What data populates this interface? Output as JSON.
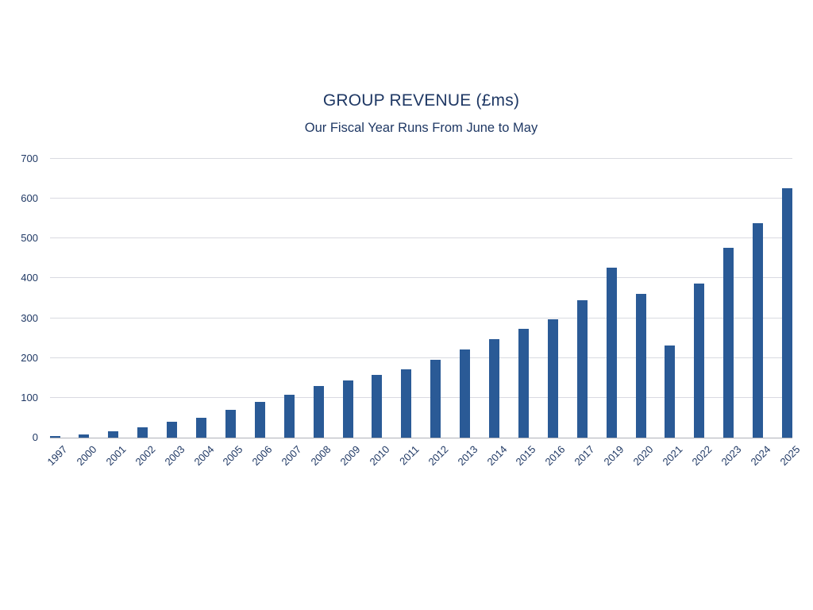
{
  "chart_data": {
    "type": "bar",
    "title": "GROUP REVENUE (£ms)",
    "subtitle": "Our Fiscal Year Runs From June to May",
    "categories": [
      "1997",
      "2000",
      "2001",
      "2002",
      "2003",
      "2004",
      "2005",
      "2006",
      "2007",
      "2008",
      "2009",
      "2010",
      "2011",
      "2012",
      "2013",
      "2014",
      "2015",
      "2016",
      "2017",
      "2019",
      "2020",
      "2021",
      "2022",
      "2023",
      "2024",
      "2025"
    ],
    "values": [
      3,
      7,
      15,
      26,
      40,
      50,
      70,
      90,
      108,
      130,
      143,
      157,
      172,
      196,
      222,
      247,
      273,
      298,
      345,
      427,
      360,
      232,
      387,
      476,
      539,
      626
    ],
    "xlabel": "",
    "ylabel": "",
    "ylim": [
      0,
      700
    ],
    "ytick_interval": 100,
    "yticks": [
      0,
      100,
      200,
      300,
      400,
      500,
      600,
      700
    ],
    "grid": "horizontal-only",
    "legend": "none",
    "colors": {
      "bar": "#2a5a96",
      "gridline": "#d9dae1",
      "axis_line": "#aeb1ba",
      "text": "#1f3864",
      "background": "#ffffff"
    }
  }
}
